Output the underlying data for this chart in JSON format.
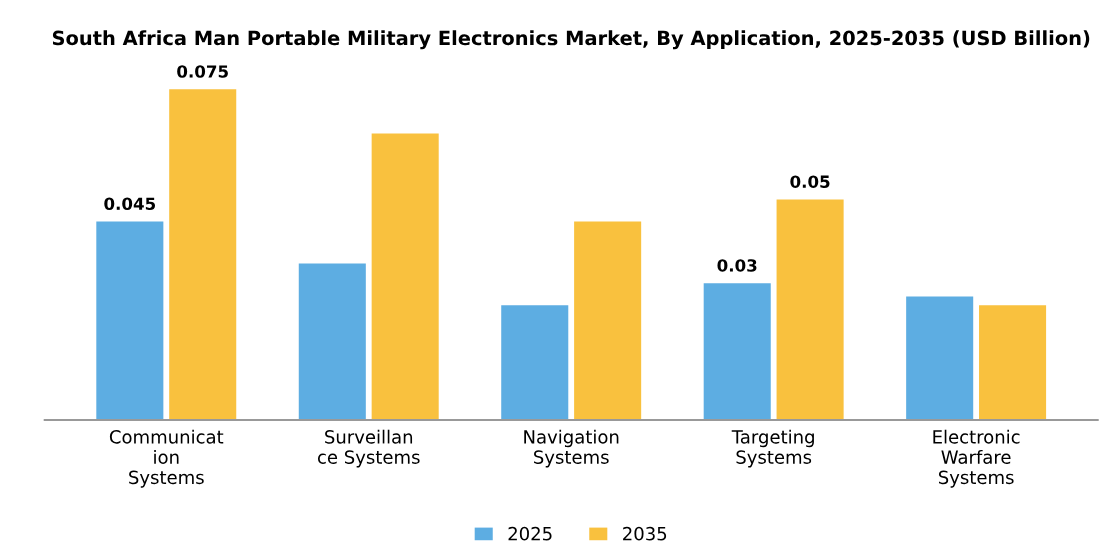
{
  "chart_data": {
    "type": "bar",
    "title": "South Africa Man Portable Military Electronics Market, By Application, 2025-2035 (USD Billion)",
    "categories": [
      "Communicat\nion\nSystems",
      "Surveillan\nce Systems",
      "Navigation\nSystems",
      "Targeting\nSystems",
      "Electronic\nWarfare\nSystems"
    ],
    "series": [
      {
        "name": "2025",
        "color": "#5dade2",
        "values": [
          0.045,
          0.0355,
          0.026,
          0.031,
          0.028
        ],
        "value_labels": [
          "0.045",
          null,
          null,
          "0.03",
          null
        ]
      },
      {
        "name": "2035",
        "color": "#f9c13e",
        "values": [
          0.075,
          0.065,
          0.045,
          0.05,
          0.026
        ],
        "value_labels": [
          "0.075",
          null,
          null,
          "0.05",
          null
        ]
      }
    ],
    "legend": "bottom",
    "grid": false
  }
}
